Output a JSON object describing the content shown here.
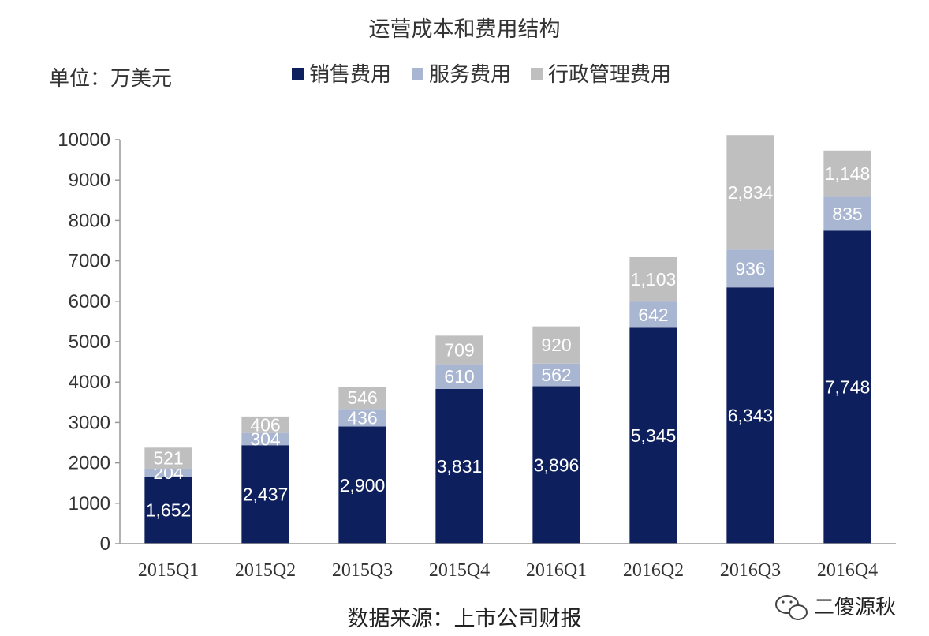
{
  "chart_data": {
    "type": "bar",
    "stacked": true,
    "title": "运营成本和费用结构",
    "unit_label": "单位：万美元",
    "categories": [
      "2015Q1",
      "2015Q2",
      "2015Q3",
      "2015Q4",
      "2016Q1",
      "2016Q2",
      "2016Q3",
      "2016Q4"
    ],
    "series": [
      {
        "name": "销售费用",
        "color": "#0d1f5c",
        "values": [
          1652,
          2437,
          2900,
          3831,
          3896,
          5345,
          6343,
          7748
        ],
        "labels": [
          "1,652",
          "2,437",
          "2,900",
          "3,831",
          "3,896",
          "5,345",
          "6,343",
          "7,748"
        ]
      },
      {
        "name": "服务费用",
        "color": "#a9b6d2",
        "values": [
          204,
          304,
          436,
          610,
          562,
          642,
          936,
          835
        ],
        "labels": [
          "204",
          "304",
          "436",
          "610",
          "562",
          "642",
          "936",
          "835"
        ]
      },
      {
        "name": "行政管理费用",
        "color": "#bfbfbf",
        "values": [
          521,
          406,
          546,
          709,
          920,
          1103,
          2834,
          1148
        ],
        "labels": [
          "521",
          "406",
          "546",
          "709",
          "920",
          "1,103",
          "2,834",
          "1,148"
        ]
      }
    ],
    "ylim": [
      0,
      10000
    ],
    "yticks": [
      "0",
      "1000",
      "2000",
      "3000",
      "4000",
      "5000",
      "6000",
      "7000",
      "8000",
      "9000",
      "10000"
    ],
    "grid": false,
    "legend_position": "top"
  },
  "source_text": "数据来源：上市公司财报",
  "watermark_text": "二傻源秋"
}
